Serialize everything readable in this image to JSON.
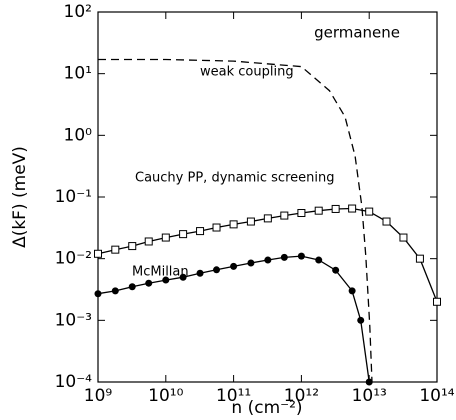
{
  "chart_data": {
    "type": "line",
    "annotation": "germanene",
    "xlabel": "n (cm⁻²)",
    "ylabel": "Δ(kF) (meV)",
    "xscale": "log",
    "yscale": "log",
    "xlim": [
      1000000000.0,
      100000000000000.0
    ],
    "ylim": [
      0.0001,
      100
    ],
    "xticks": [
      {
        "value": 1000000000.0,
        "label": "10⁹"
      },
      {
        "value": 10000000000.0,
        "label": "10¹⁰"
      },
      {
        "value": 100000000000.0,
        "label": "10¹¹"
      },
      {
        "value": 1000000000000.0,
        "label": "10¹²"
      },
      {
        "value": 10000000000000.0,
        "label": "10¹³"
      },
      {
        "value": 100000000000000.0,
        "label": "10¹⁴"
      }
    ],
    "yticks": [
      {
        "value": 0.0001,
        "label": "10⁻⁴"
      },
      {
        "value": 0.001,
        "label": "10⁻³"
      },
      {
        "value": 0.01,
        "label": "10⁻²"
      },
      {
        "value": 0.1,
        "label": "10⁻¹"
      },
      {
        "value": 1,
        "label": "10⁰"
      },
      {
        "value": 10,
        "label": "10¹"
      },
      {
        "value": 100,
        "label": "10²"
      }
    ],
    "series": [
      {
        "name": "weak coupling",
        "color": "#000000",
        "dashed": true,
        "marker": "none",
        "x": [
          1000000000.0,
          10000000000.0,
          100000000000.0,
          1000000000000.0,
          2600000000000.0,
          4400000000000.0,
          6200000000000.0,
          7800000000000.0,
          8900000000000.0,
          10200000000000.0,
          11000000000000.0
        ],
        "values": [
          17,
          17,
          16,
          13,
          5.3,
          2,
          0.46,
          0.07,
          0.011,
          0.0008,
          0.0001
        ]
      },
      {
        "name": "Cauchy PP, dynamic screening",
        "color": "#000000",
        "dashed": false,
        "marker": "square",
        "x": [
          1000000000.0,
          1800000000.0,
          3200000000.0,
          5600000000.0,
          10000000000.0,
          18000000000.0,
          32000000000.0,
          56000000000.0,
          100000000000.0,
          180000000000.0,
          320000000000.0,
          560000000000.0,
          1000000000000.0,
          1800000000000.0,
          3200000000000.0,
          5600000000000.0,
          10000000000000.0,
          18000000000000.0,
          32000000000000.0,
          56000000000000.0,
          100000000000000.0
        ],
        "values": [
          0.012,
          0.014,
          0.016,
          0.019,
          0.022,
          0.025,
          0.028,
          0.032,
          0.036,
          0.04,
          0.045,
          0.05,
          0.055,
          0.06,
          0.064,
          0.065,
          0.058,
          0.04,
          0.022,
          0.01,
          0.002
        ]
      },
      {
        "name": "McMillan",
        "color": "#000000",
        "dashed": false,
        "marker": "circle",
        "x": [
          1000000000.0,
          1800000000.0,
          3200000000.0,
          5600000000.0,
          10000000000.0,
          18000000000.0,
          32000000000.0,
          56000000000.0,
          100000000000.0,
          180000000000.0,
          320000000000.0,
          560000000000.0,
          1000000000000.0,
          1800000000000.0,
          3200000000000.0,
          5600000000000.0,
          7500000000000.0,
          10000000000000.0
        ],
        "values": [
          0.0027,
          0.003,
          0.0035,
          0.004,
          0.0045,
          0.005,
          0.0058,
          0.0066,
          0.0075,
          0.0085,
          0.0095,
          0.0105,
          0.011,
          0.0095,
          0.0065,
          0.003,
          0.001,
          0.0001
        ]
      }
    ]
  }
}
